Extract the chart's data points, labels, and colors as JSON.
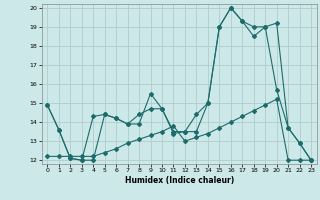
{
  "xlabel": "Humidex (Indice chaleur)",
  "xlim": [
    -0.5,
    23.5
  ],
  "ylim": [
    11.8,
    20.2
  ],
  "yticks": [
    12,
    13,
    14,
    15,
    16,
    17,
    18,
    19,
    20
  ],
  "xticks": [
    0,
    1,
    2,
    3,
    4,
    5,
    6,
    7,
    8,
    9,
    10,
    11,
    12,
    13,
    14,
    15,
    16,
    17,
    18,
    19,
    20,
    21,
    22,
    23
  ],
  "background_color": "#cce8e8",
  "grid_color": "#b0cccc",
  "line_color": "#1e6b6b",
  "series1_x": [
    0,
    1,
    2,
    3,
    4,
    5,
    6,
    7,
    8,
    9,
    10,
    11,
    12,
    13,
    14,
    15,
    16,
    17,
    18,
    19,
    20,
    21,
    22,
    23
  ],
  "series1_y": [
    14.9,
    13.6,
    12.1,
    12.0,
    12.0,
    14.4,
    14.2,
    13.9,
    13.9,
    15.5,
    14.7,
    13.4,
    13.5,
    13.5,
    15.0,
    19.0,
    20.0,
    19.3,
    18.5,
    19.0,
    19.2,
    13.7,
    12.9,
    12.0
  ],
  "series2_x": [
    0,
    1,
    2,
    3,
    4,
    5,
    6,
    7,
    8,
    9,
    10,
    11,
    12,
    13,
    14,
    15,
    16,
    17,
    18,
    19,
    20,
    21,
    22,
    23
  ],
  "series2_y": [
    14.9,
    13.6,
    12.1,
    12.0,
    14.3,
    14.4,
    14.2,
    13.9,
    14.4,
    14.7,
    14.7,
    13.5,
    13.5,
    14.4,
    15.0,
    19.0,
    20.0,
    19.3,
    19.0,
    19.0,
    15.7,
    13.7,
    12.9,
    12.0
  ],
  "series3_x": [
    0,
    1,
    2,
    3,
    4,
    5,
    6,
    7,
    8,
    9,
    10,
    11,
    12,
    13,
    14,
    15,
    16,
    17,
    18,
    19,
    20,
    21,
    22,
    23
  ],
  "series3_y": [
    12.2,
    12.2,
    12.2,
    12.2,
    12.2,
    12.4,
    12.6,
    12.9,
    13.1,
    13.3,
    13.5,
    13.8,
    13.0,
    13.2,
    13.4,
    13.7,
    14.0,
    14.3,
    14.6,
    14.9,
    15.2,
    12.0,
    12.0,
    12.0
  ]
}
